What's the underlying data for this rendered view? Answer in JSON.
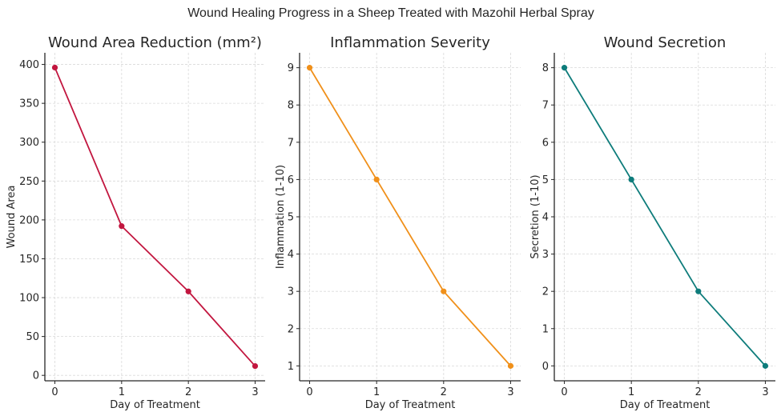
{
  "figure": {
    "suptitle": "Wound Healing Progress in a Sheep Treated with Mazohil Herbal Spray"
  },
  "chart_data": [
    {
      "type": "line",
      "title": "Wound Area Reduction (mm²)",
      "xlabel": "Day of Treatment",
      "ylabel": "Wound Area",
      "x": [
        0,
        1,
        2,
        3
      ],
      "values": [
        396,
        192,
        108,
        12
      ],
      "xticks": [
        "0",
        "1",
        "2",
        "3"
      ],
      "yticks": [
        "0",
        "50",
        "100",
        "150",
        "200",
        "250",
        "300",
        "350",
        "400"
      ],
      "ylim": [
        -7,
        415
      ],
      "xlim": [
        -0.15,
        3.15
      ],
      "grid": true,
      "marker": "circle",
      "color": "#c2163f"
    },
    {
      "type": "line",
      "title": "Inflammation Severity",
      "xlabel": "Day of Treatment",
      "ylabel": "Inflammation (1-10)",
      "x": [
        0,
        1,
        2,
        3
      ],
      "values": [
        9,
        6,
        3,
        1
      ],
      "xticks": [
        "0",
        "1",
        "2",
        "3"
      ],
      "yticks": [
        "1",
        "2",
        "3",
        "4",
        "5",
        "6",
        "7",
        "8",
        "9"
      ],
      "ylim": [
        0.6,
        9.4
      ],
      "xlim": [
        -0.15,
        3.15
      ],
      "grid": true,
      "marker": "circle",
      "color": "#f0901a"
    },
    {
      "type": "line",
      "title": "Wound Secretion",
      "xlabel": "Day of Treatment",
      "ylabel": "Secretion (1-10)",
      "x": [
        0,
        1,
        2,
        3
      ],
      "values": [
        8,
        5,
        2,
        0
      ],
      "xticks": [
        "0",
        "1",
        "2",
        "3"
      ],
      "yticks": [
        "0",
        "1",
        "2",
        "3",
        "4",
        "5",
        "6",
        "7",
        "8"
      ],
      "ylim": [
        -0.4,
        8.4
      ],
      "xlim": [
        -0.15,
        3.15
      ],
      "grid": true,
      "marker": "circle",
      "color": "#0e7c7b"
    }
  ]
}
